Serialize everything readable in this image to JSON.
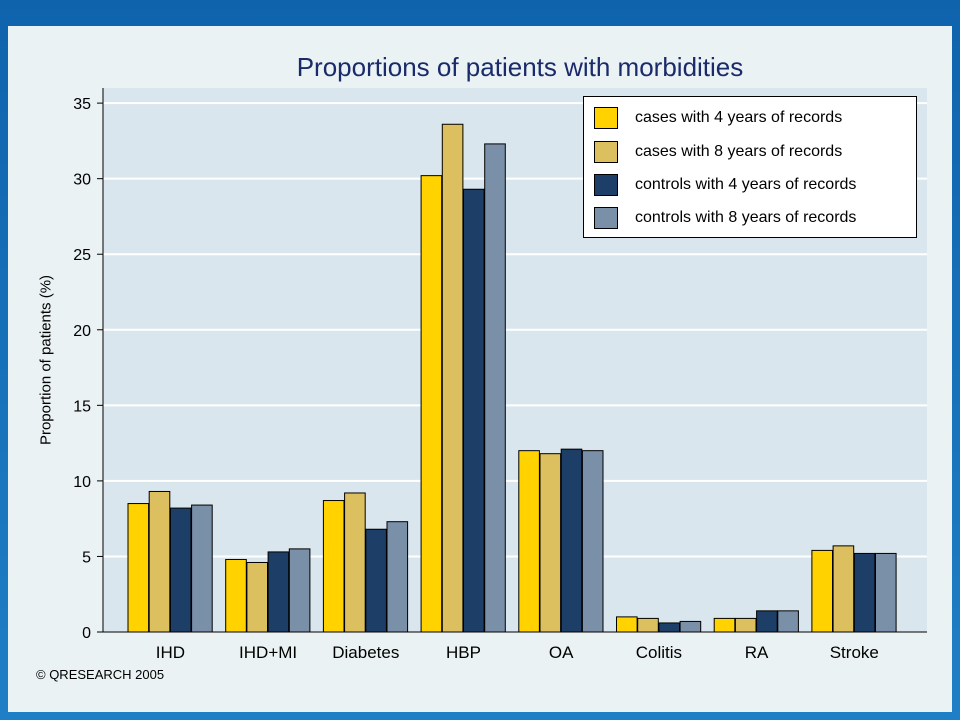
{
  "copyright": "© QRESEARCH 2005",
  "chart_data": {
    "type": "bar",
    "title": "Proportions of patients with morbidities",
    "xlabel": "",
    "ylabel": "Proportion of patients (%)",
    "ylim": [
      0,
      36
    ],
    "yticks": [
      0,
      5,
      10,
      15,
      20,
      25,
      30,
      35
    ],
    "grid": true,
    "legend_position": "top-right",
    "categories": [
      "IHD",
      "IHD+MI",
      "Diabetes",
      "HBP",
      "OA",
      "Colitis",
      "RA",
      "Stroke"
    ],
    "series": [
      {
        "name": "cases with 4 years of records",
        "color": "#ffd200",
        "values": [
          8.5,
          4.8,
          8.7,
          30.2,
          12.0,
          1.0,
          0.9,
          5.4
        ]
      },
      {
        "name": "cases with 8 years of records",
        "color": "#dcc060",
        "values": [
          9.3,
          4.6,
          9.2,
          33.6,
          11.8,
          0.9,
          0.9,
          5.7
        ]
      },
      {
        "name": "controls with 4 years of records",
        "color": "#1d3e66",
        "values": [
          8.2,
          5.3,
          6.8,
          29.3,
          12.1,
          0.6,
          1.4,
          5.2
        ]
      },
      {
        "name": "controls with 8 years of records",
        "color": "#7a8fa8",
        "values": [
          8.4,
          5.5,
          7.3,
          32.3,
          12.0,
          0.7,
          1.4,
          5.2
        ]
      }
    ]
  }
}
